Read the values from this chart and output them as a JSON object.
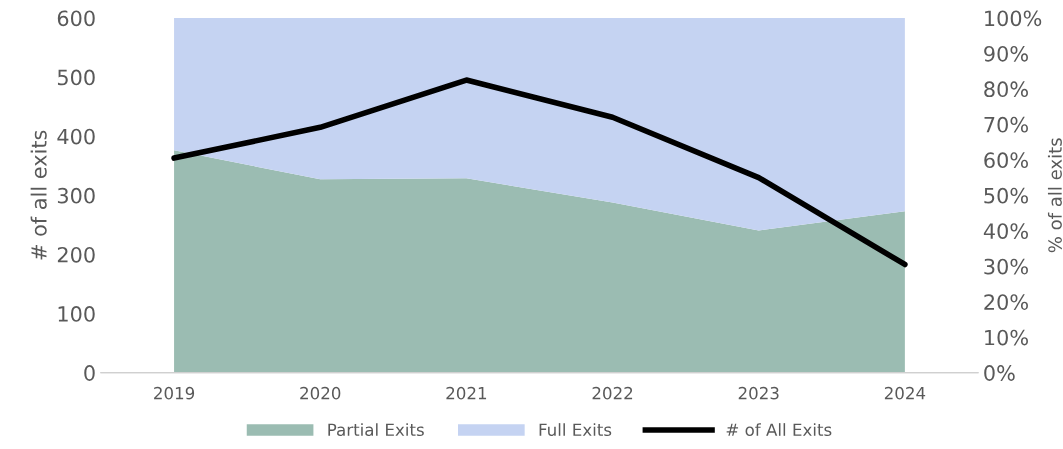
{
  "chart_data": {
    "type": "area",
    "ylabel": "# of all exits",
    "y2label": "% of all exits",
    "categories": [
      "2019",
      "2020",
      "2021",
      "2022",
      "2023",
      "2024"
    ],
    "stacked": true,
    "series": [
      {
        "name": "Partial Exits",
        "color": "#9bbcb2",
        "axis": "y2",
        "values": [
          62.7,
          54.5,
          54.8,
          48,
          40.1,
          45.5
        ]
      },
      {
        "name": "Full Exits",
        "color": "#c5d3f2",
        "axis": "y2",
        "values": [
          37.3,
          45.5,
          45.2,
          52,
          59.9,
          54.5
        ]
      },
      {
        "name": "# of All Exits",
        "type": "line",
        "color": "#000000",
        "values": [
          363,
          415,
          495,
          432,
          330,
          183
        ]
      }
    ],
    "ylim": [
      0,
      600
    ],
    "yticks": [
      0,
      100,
      200,
      300,
      400,
      500,
      600
    ],
    "y2lim": [
      0,
      100
    ],
    "y2ticks": [
      {
        "value": 0,
        "label": "0%"
      },
      {
        "value": 10,
        "label": "10%"
      },
      {
        "value": 20,
        "label": "20%"
      },
      {
        "value": 30,
        "label": "30%"
      },
      {
        "value": 40,
        "label": "40%"
      },
      {
        "value": 50,
        "label": "50%"
      },
      {
        "value": 60,
        "label": "60%"
      },
      {
        "value": 70,
        "label": "70%"
      },
      {
        "value": 80,
        "label": "80%"
      },
      {
        "value": 90,
        "label": "90%"
      },
      {
        "value": 100,
        "label": "100%"
      }
    ],
    "legend": "bottom",
    "grid": false
  }
}
